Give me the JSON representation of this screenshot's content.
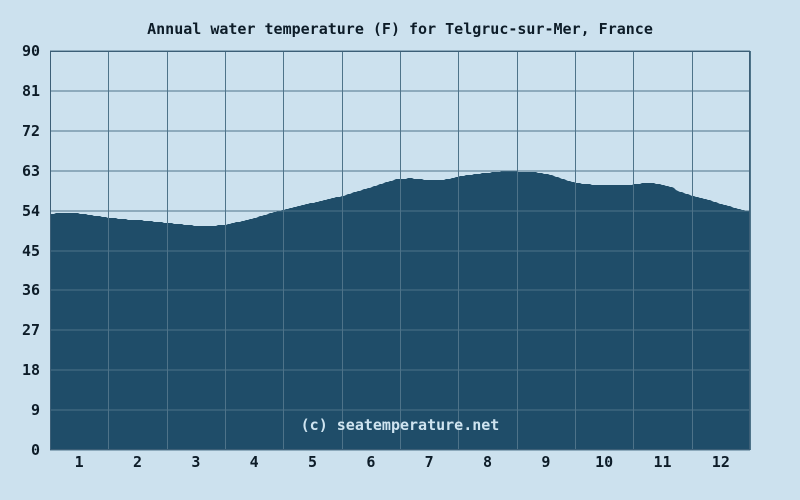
{
  "page": {
    "title": "Annual water temperature (F) for Telgruc-sur-Mer, France",
    "watermark": "(c) seatemperature.net"
  },
  "colors": {
    "background": "#cce1ee",
    "area_fill": "#1f4d69",
    "grid_line": "#4e7389",
    "plot_border": "#3c5f77",
    "text": "#0d1c28",
    "watermark_text": "#cfe4f0"
  },
  "chart_data": {
    "type": "area",
    "title": "Annual water temperature (F) for Telgruc-sur-Mer, France",
    "xlabel": "",
    "ylabel": "",
    "unit": "F",
    "grid": true,
    "legend_position": "none",
    "ylim": [
      0,
      90
    ],
    "y_tick_step": 9,
    "y_tick_labels": [
      "0",
      "9",
      "18",
      "27",
      "36",
      "45",
      "54",
      "63",
      "72",
      "81",
      "90"
    ],
    "xlim_months": [
      0,
      12
    ],
    "x_tick_labels": [
      "1",
      "2",
      "3",
      "4",
      "5",
      "6",
      "7",
      "8",
      "9",
      "10",
      "11",
      "12"
    ],
    "series": [
      {
        "name": "Water temperature (F)",
        "points": [
          [
            0.0,
            53.2
          ],
          [
            0.2,
            53.5
          ],
          [
            0.45,
            53.4
          ],
          [
            0.75,
            52.9
          ],
          [
            1.0,
            52.4
          ],
          [
            1.3,
            52.0
          ],
          [
            1.55,
            51.8
          ],
          [
            1.8,
            51.5
          ],
          [
            2.0,
            51.2
          ],
          [
            2.25,
            50.9
          ],
          [
            2.5,
            50.6
          ],
          [
            2.75,
            50.5
          ],
          [
            3.0,
            50.8
          ],
          [
            3.25,
            51.5
          ],
          [
            3.5,
            52.3
          ],
          [
            3.75,
            53.3
          ],
          [
            4.0,
            54.2
          ],
          [
            4.3,
            55.1
          ],
          [
            4.55,
            55.9
          ],
          [
            4.8,
            56.7
          ],
          [
            5.0,
            57.2
          ],
          [
            5.25,
            58.3
          ],
          [
            5.5,
            59.2
          ],
          [
            5.75,
            60.3
          ],
          [
            5.95,
            61.1
          ],
          [
            6.2,
            61.3
          ],
          [
            6.45,
            60.9
          ],
          [
            6.7,
            60.8
          ],
          [
            6.86,
            61.2
          ],
          [
            7.0,
            61.7
          ],
          [
            7.3,
            62.2
          ],
          [
            7.55,
            62.6
          ],
          [
            7.8,
            62.9
          ],
          [
            8.05,
            62.8
          ],
          [
            8.3,
            62.7
          ],
          [
            8.55,
            62.2
          ],
          [
            8.75,
            61.3
          ],
          [
            9.0,
            60.3
          ],
          [
            9.25,
            59.9
          ],
          [
            9.5,
            59.7
          ],
          [
            9.75,
            59.7
          ],
          [
            10.0,
            59.9
          ],
          [
            10.2,
            60.2
          ],
          [
            10.4,
            60.1
          ],
          [
            10.65,
            59.3
          ],
          [
            10.8,
            58.3
          ],
          [
            11.0,
            57.4
          ],
          [
            11.25,
            56.6
          ],
          [
            11.4,
            55.9
          ],
          [
            11.6,
            55.2
          ],
          [
            11.8,
            54.4
          ],
          [
            12.0,
            53.8
          ]
        ]
      }
    ]
  }
}
